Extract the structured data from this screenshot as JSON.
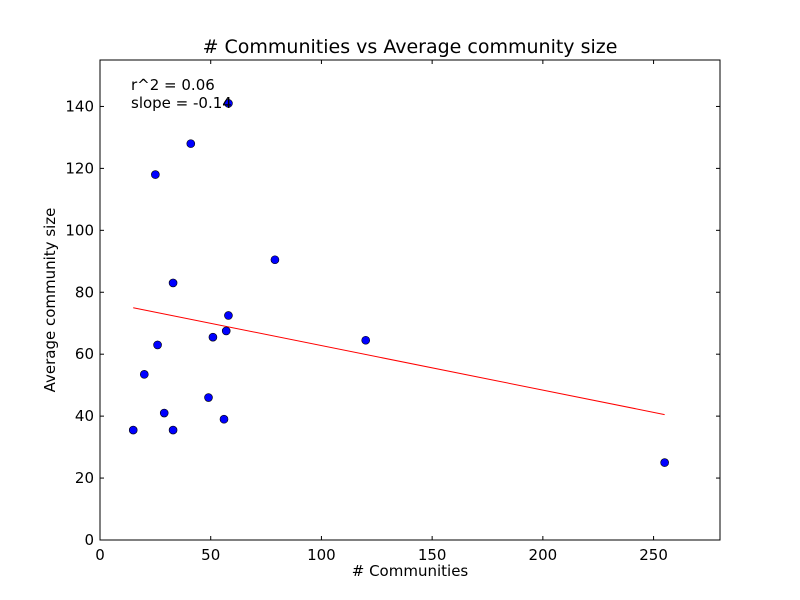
{
  "chart_data": {
    "type": "scatter",
    "title": "# Communities vs Average community size",
    "xlabel": "# Communities",
    "ylabel": "Average community size",
    "xlim": [
      0,
      280
    ],
    "ylim": [
      0,
      155
    ],
    "xticks": [
      0,
      50,
      100,
      150,
      200,
      250
    ],
    "yticks": [
      0,
      20,
      40,
      60,
      80,
      100,
      120,
      140
    ],
    "grid": false,
    "series": [
      {
        "kind": "points",
        "color": "#0000ff",
        "points": [
          {
            "x": 15,
            "y": 35.5
          },
          {
            "x": 20,
            "y": 53.5
          },
          {
            "x": 25,
            "y": 118
          },
          {
            "x": 26,
            "y": 63
          },
          {
            "x": 29,
            "y": 41
          },
          {
            "x": 33,
            "y": 35.5
          },
          {
            "x": 33,
            "y": 83
          },
          {
            "x": 41,
            "y": 128
          },
          {
            "x": 49,
            "y": 46
          },
          {
            "x": 51,
            "y": 65.5
          },
          {
            "x": 56,
            "y": 39
          },
          {
            "x": 57,
            "y": 67.5
          },
          {
            "x": 58,
            "y": 72.5
          },
          {
            "x": 58,
            "y": 141
          },
          {
            "x": 79,
            "y": 90.5
          },
          {
            "x": 120,
            "y": 64.5
          },
          {
            "x": 255,
            "y": 25
          }
        ]
      },
      {
        "kind": "fit-line",
        "color": "#ff0000",
        "points": [
          {
            "x": 15,
            "y": 75
          },
          {
            "x": 255,
            "y": 40.5
          }
        ]
      }
    ],
    "annotations": [
      "r^2 = 0.06",
      "slope = -0.14"
    ]
  }
}
